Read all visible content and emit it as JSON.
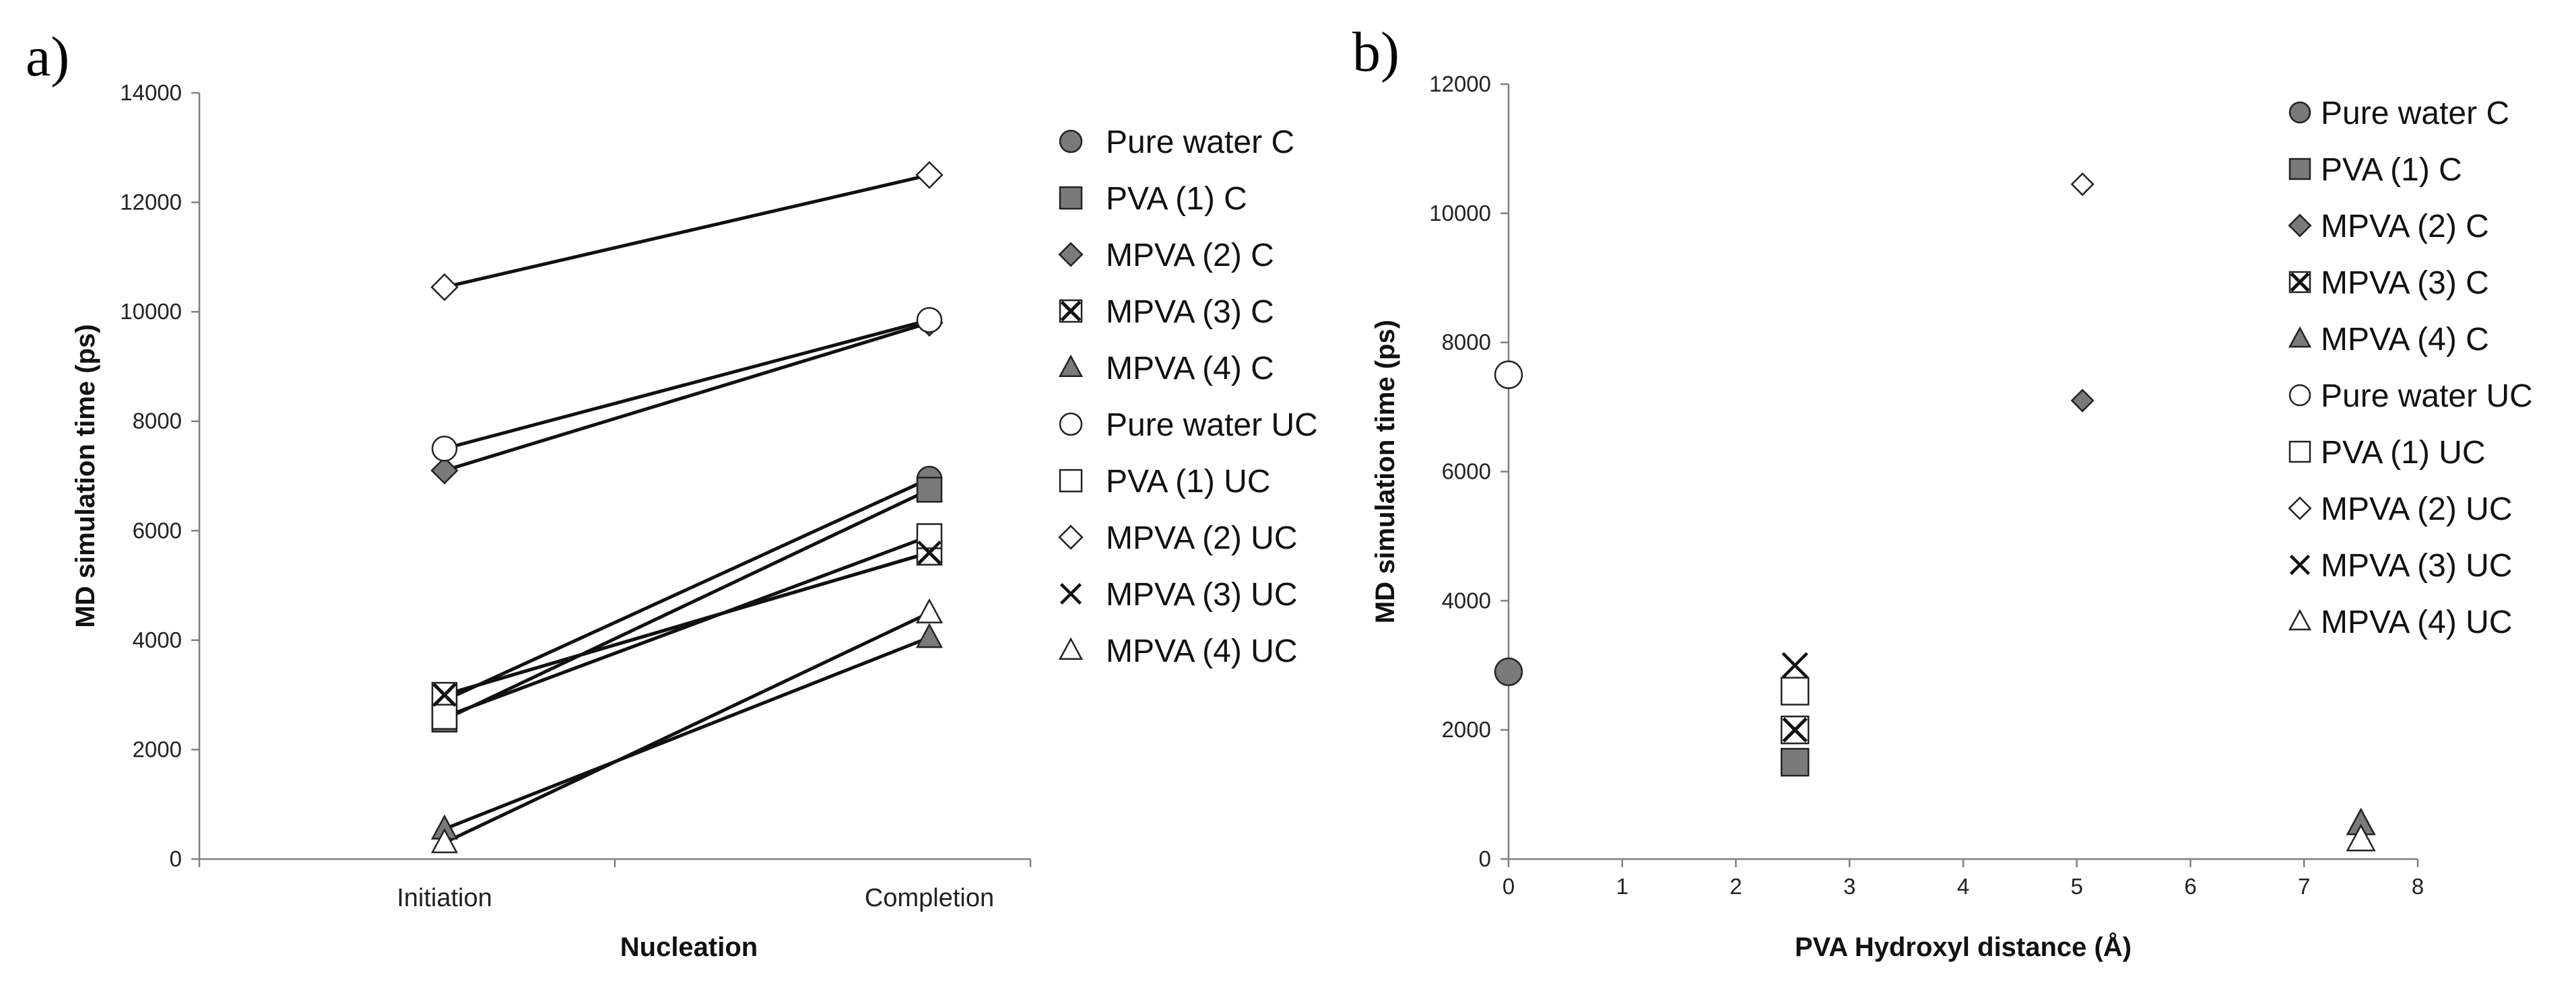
{
  "colors": {
    "filled": "#7a7a7a",
    "open": "#ffffff",
    "stroke": "#222222",
    "axis": "#7f7f7f",
    "line": "#111111"
  },
  "chart_data": [
    {
      "panel_label": "a)",
      "type": "line",
      "categories": [
        "Initiation",
        "Completion"
      ],
      "xlabel": "Nucleation",
      "ylabel": "MD simulation time (ps)",
      "ylim": [
        0,
        14000
      ],
      "yticks": [
        0,
        2000,
        4000,
        6000,
        8000,
        10000,
        12000,
        14000
      ],
      "grid": false,
      "legend_position": "right",
      "series": [
        {
          "name": "Pure water C",
          "marker": "circle",
          "filled": true,
          "values": [
            2900,
            6950
          ]
        },
        {
          "name": "PVA (1) C",
          "marker": "square",
          "filled": true,
          "values": [
            2550,
            6750
          ]
        },
        {
          "name": "MPVA (2) C",
          "marker": "diamond",
          "filled": true,
          "values": [
            7100,
            9800
          ]
        },
        {
          "name": "MPVA (3) C",
          "marker": "boxx",
          "filled": true,
          "values": [
            3000,
            5600
          ]
        },
        {
          "name": "MPVA (4) C",
          "marker": "triangle",
          "filled": true,
          "values": [
            550,
            4050
          ]
        },
        {
          "name": "Pure water UC",
          "marker": "circle",
          "filled": false,
          "values": [
            7500,
            9850
          ]
        },
        {
          "name": "PVA (1) UC",
          "marker": "square",
          "filled": false,
          "values": [
            2600,
            5900
          ]
        },
        {
          "name": "MPVA (2) UC",
          "marker": "diamond",
          "filled": false,
          "values": [
            10450,
            12500
          ]
        },
        {
          "name": "MPVA (3) UC",
          "marker": "x",
          "filled": false,
          "values": [
            3000,
            5600
          ]
        },
        {
          "name": "MPVA (4) UC",
          "marker": "triangle",
          "filled": false,
          "values": [
            300,
            4500
          ]
        }
      ]
    },
    {
      "panel_label": "b)",
      "type": "scatter",
      "xlabel": "PVA Hydroxyl distance (Å)",
      "ylabel": "MD simulation time (ps)",
      "xlim": [
        0,
        8
      ],
      "ylim": [
        0,
        12000
      ],
      "xticks": [
        0,
        1,
        2,
        3,
        4,
        5,
        6,
        7,
        8
      ],
      "yticks": [
        0,
        2000,
        4000,
        6000,
        8000,
        10000,
        12000
      ],
      "grid": false,
      "legend_position": "right",
      "series": [
        {
          "name": "Pure water C",
          "marker": "circle",
          "filled": true,
          "points": [
            [
              0,
              2900
            ]
          ]
        },
        {
          "name": "PVA (1) C",
          "marker": "square",
          "filled": true,
          "points": [
            [
              2.52,
              1500
            ]
          ]
        },
        {
          "name": "MPVA (2) C",
          "marker": "diamond",
          "filled": true,
          "points": [
            [
              5.05,
              7100
            ]
          ]
        },
        {
          "name": "MPVA (3) C",
          "marker": "boxx",
          "filled": true,
          "points": [
            [
              2.52,
              2000
            ]
          ]
        },
        {
          "name": "MPVA (4) C",
          "marker": "triangle",
          "filled": true,
          "points": [
            [
              7.5,
              550
            ]
          ]
        },
        {
          "name": "Pure water UC",
          "marker": "circle",
          "filled": false,
          "points": [
            [
              0,
              7500
            ]
          ]
        },
        {
          "name": "PVA (1) UC",
          "marker": "square",
          "filled": false,
          "points": [
            [
              2.52,
              2600
            ]
          ]
        },
        {
          "name": "MPVA (2) UC",
          "marker": "diamond",
          "filled": false,
          "points": [
            [
              5.05,
              10450
            ]
          ]
        },
        {
          "name": "MPVA (3) UC",
          "marker": "x",
          "filled": false,
          "points": [
            [
              2.52,
              3000
            ]
          ]
        },
        {
          "name": "MPVA (4) UC",
          "marker": "triangle",
          "filled": false,
          "points": [
            [
              7.5,
              300
            ]
          ]
        }
      ]
    }
  ]
}
